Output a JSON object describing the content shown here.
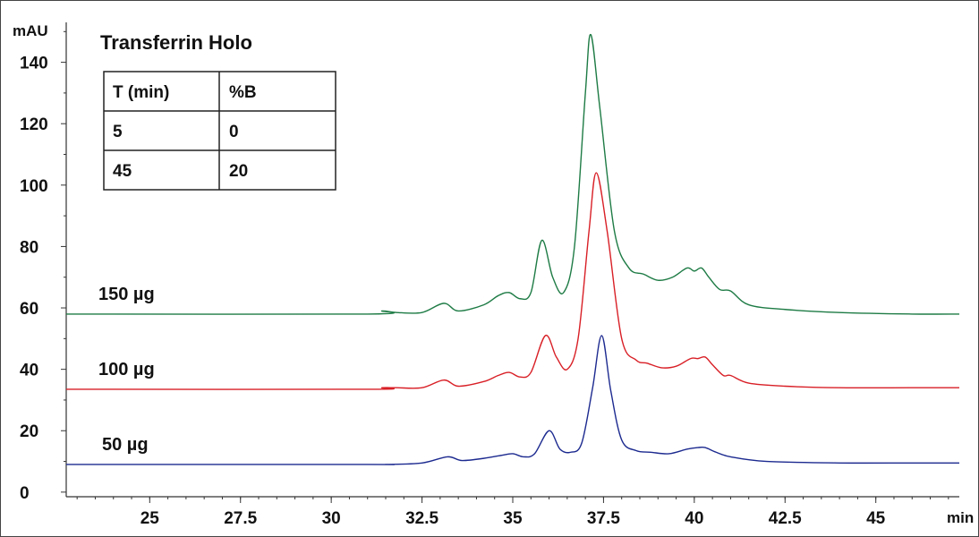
{
  "chart_data": {
    "type": "line",
    "title": "Transferrin Holo",
    "xlabel": "min",
    "ylabel": "mAU",
    "xlim": [
      22.7,
      47.3
    ],
    "ylim": [
      -1.5,
      153
    ],
    "x_ticks": [
      "25",
      "27.5",
      "30",
      "32.5",
      "35",
      "37.5",
      "40",
      "42.5",
      "45"
    ],
    "y_ticks": [
      "0",
      "20",
      "40",
      "60",
      "80",
      "100",
      "120",
      "140"
    ],
    "grid": false,
    "series": [
      {
        "name": "150 µg",
        "color": "#1e7b45",
        "baseline": 58,
        "x": [
          22.7,
          31.0,
          31.4,
          31.8,
          32.5,
          33.1,
          33.5,
          34.2,
          34.6,
          34.9,
          35.2,
          35.5,
          35.8,
          36.1,
          36.4,
          36.7,
          37.0,
          37.15,
          37.4,
          37.8,
          38.2,
          38.6,
          39.0,
          39.4,
          39.8,
          40.0,
          40.2,
          40.4,
          40.7,
          41.0,
          41.5,
          42.5,
          44.0,
          46.0,
          47.3
        ],
        "y": [
          58,
          58,
          59,
          58.5,
          58.5,
          61.5,
          59,
          61,
          64,
          65,
          63,
          65,
          82,
          70,
          65,
          80,
          130,
          149,
          125,
          85,
          73,
          71,
          69,
          70,
          73,
          72,
          73,
          70,
          66,
          65.5,
          61,
          59.5,
          58.5,
          58,
          58
        ]
      },
      {
        "name": "100 µg",
        "color": "#d81f26",
        "baseline": 33.5,
        "x": [
          22.7,
          31.0,
          31.4,
          31.8,
          32.5,
          33.1,
          33.5,
          34.2,
          34.6,
          34.9,
          35.2,
          35.5,
          35.9,
          36.2,
          36.5,
          36.8,
          37.1,
          37.3,
          37.6,
          38.0,
          38.4,
          38.7,
          39.1,
          39.5,
          39.9,
          40.1,
          40.3,
          40.5,
          40.8,
          41.0,
          41.5,
          42.5,
          44.0,
          46.0,
          47.3
        ],
        "y": [
          33.5,
          33.5,
          34,
          34,
          34,
          36.5,
          34.5,
          36,
          38,
          39,
          37.5,
          39,
          51,
          44,
          40,
          50,
          85,
          104,
          85,
          50,
          43,
          42,
          40.5,
          41,
          43.5,
          43.5,
          44,
          41.5,
          38,
          38,
          35.5,
          34.5,
          34,
          34,
          34
        ]
      },
      {
        "name": "50 µg",
        "color": "#1c2a8f",
        "baseline": 9,
        "x": [
          22.7,
          31.0,
          31.5,
          32.5,
          33.2,
          33.6,
          34.2,
          34.7,
          35.0,
          35.3,
          35.6,
          36.0,
          36.3,
          36.6,
          36.9,
          37.2,
          37.45,
          37.7,
          38.0,
          38.4,
          38.8,
          39.3,
          39.8,
          40.1,
          40.3,
          40.6,
          41.0,
          42.0,
          44.0,
          46.0,
          47.3
        ],
        "y": [
          9,
          9,
          9,
          9.5,
          11.5,
          10.3,
          11,
          12,
          12.5,
          11.5,
          12.5,
          20,
          14,
          13,
          16,
          34,
          51,
          33,
          17,
          13.5,
          13,
          12.5,
          14,
          14.5,
          14.5,
          13,
          11.5,
          10,
          9.5,
          9.5,
          9.5
        ]
      }
    ],
    "table": {
      "headers": [
        "T (min)",
        "%B"
      ],
      "rows": [
        [
          "5",
          "0"
        ],
        [
          "45",
          "20"
        ]
      ]
    }
  }
}
